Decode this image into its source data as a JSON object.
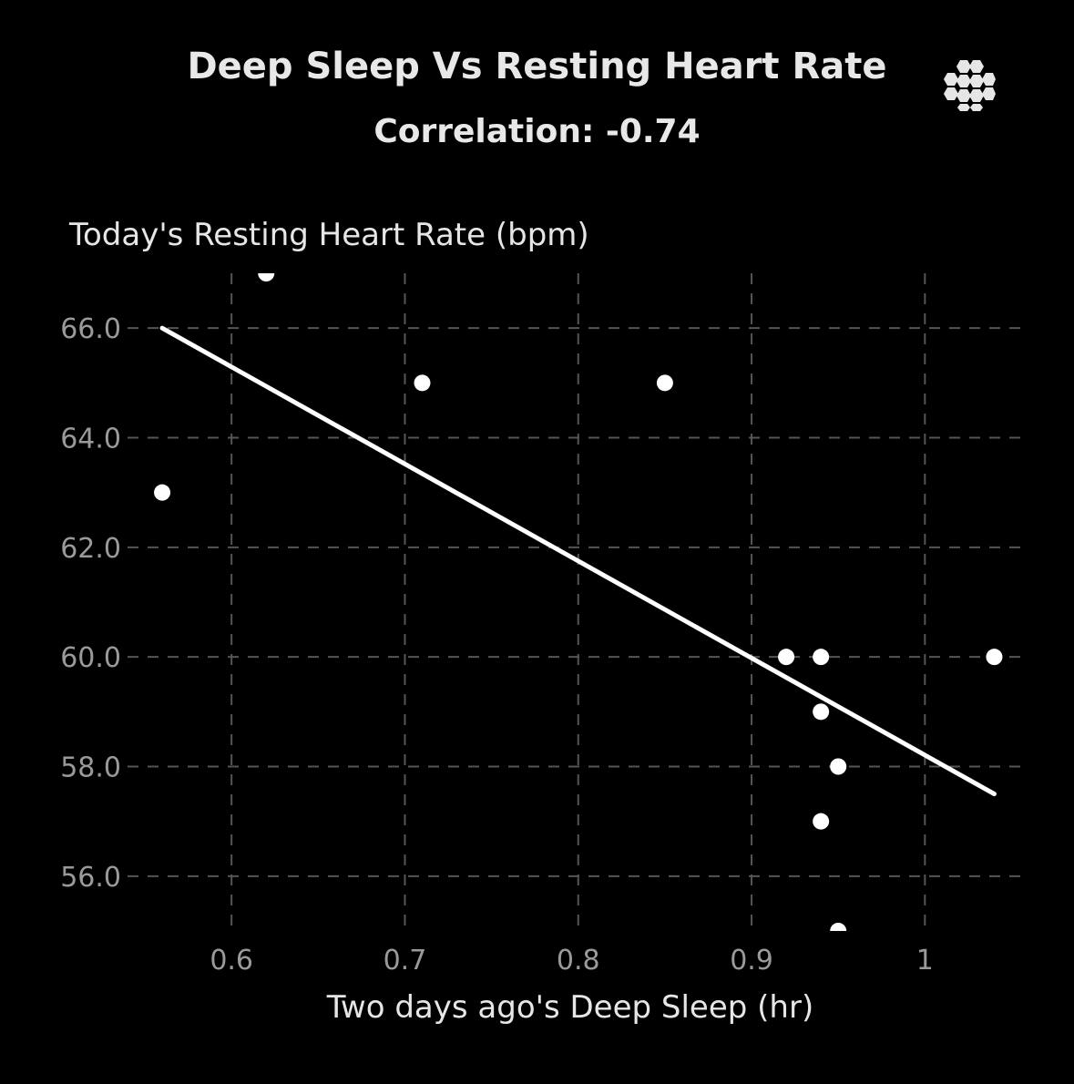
{
  "header": {
    "title": "Deep Sleep Vs Resting Heart Rate",
    "subtitle": "Correlation: -0.74",
    "menu_icon": "hexagon-cluster-icon"
  },
  "colors": {
    "background": "#000000",
    "grid": "#555555",
    "points": "#ffffff",
    "trend_line": "#ffffff",
    "tick_text": "#9a9a9a"
  },
  "chart_data": {
    "type": "scatter",
    "title": "Deep Sleep Vs Resting Heart Rate",
    "subtitle": "Correlation: -0.74",
    "xlabel": "Two days ago's Deep Sleep (hr)",
    "ylabel": "Today's Resting Heart Rate (bpm)",
    "xlim": [
      0.54,
      1.055
    ],
    "ylim": [
      55,
      67
    ],
    "x_ticks": [
      0.6,
      0.7,
      0.8,
      0.9,
      1
    ],
    "x_tick_labels": [
      "0.6",
      "0.7",
      "0.8",
      "0.9",
      "1"
    ],
    "y_ticks": [
      56,
      58,
      60,
      62,
      64,
      66
    ],
    "y_tick_labels": [
      "56.0",
      "58.0",
      "60.0",
      "62.0",
      "64.0",
      "66.0"
    ],
    "grid": "dashed",
    "points": [
      {
        "x": 0.56,
        "y": 63
      },
      {
        "x": 0.62,
        "y": 67
      },
      {
        "x": 0.71,
        "y": 65
      },
      {
        "x": 0.85,
        "y": 65
      },
      {
        "x": 0.92,
        "y": 60
      },
      {
        "x": 0.94,
        "y": 60
      },
      {
        "x": 0.94,
        "y": 59
      },
      {
        "x": 0.95,
        "y": 58
      },
      {
        "x": 0.94,
        "y": 57
      },
      {
        "x": 0.95,
        "y": 55
      },
      {
        "x": 1.04,
        "y": 60
      }
    ],
    "trend_line": {
      "x": [
        0.56,
        1.04
      ],
      "y": [
        66.0,
        57.5
      ]
    }
  }
}
